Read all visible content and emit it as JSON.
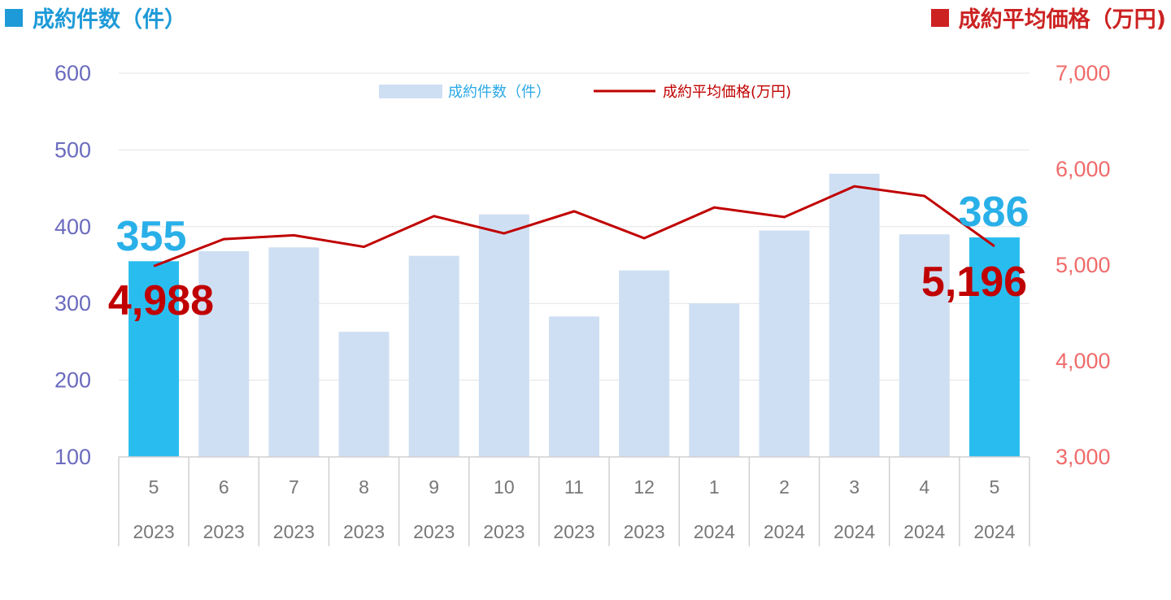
{
  "header": {
    "left_title": "成約件数（件）",
    "right_title": "成約平均価格（万円)"
  },
  "colors": {
    "bar": "#cfdff3",
    "bar_highlight": "#29bdef",
    "line": "#c00000",
    "left_axis": "#6b6bbf",
    "right_axis": "#f06b6b",
    "count_label": "#29b0e8",
    "price_label": "#c00000"
  },
  "chart_data": {
    "type": "bar",
    "categories": [
      "5\n2023",
      "6\n2023",
      "7\n2023",
      "8\n2023",
      "9\n2023",
      "10\n2023",
      "11\n2023",
      "12\n2023",
      "1\n2024",
      "2\n2024",
      "3\n2024",
      "4\n2024",
      "5\n2024"
    ],
    "months": [
      "5",
      "6",
      "7",
      "8",
      "9",
      "10",
      "11",
      "12",
      "1",
      "2",
      "3",
      "4",
      "5"
    ],
    "years": [
      "2023",
      "2023",
      "2023",
      "2023",
      "2023",
      "2023",
      "2023",
      "2023",
      "2024",
      "2024",
      "2024",
      "2024",
      "2024"
    ],
    "series": [
      {
        "name": "成約件数（件）",
        "type": "bar",
        "axis": "left",
        "values": [
          355,
          368,
          373,
          263,
          362,
          416,
          283,
          343,
          300,
          395,
          469,
          390,
          386
        ],
        "highlight": [
          true,
          false,
          false,
          false,
          false,
          false,
          false,
          false,
          false,
          false,
          false,
          false,
          true
        ]
      },
      {
        "name": "成約平均価格(万円)",
        "type": "line",
        "axis": "right",
        "values": [
          4988,
          5270,
          5310,
          5190,
          5510,
          5330,
          5560,
          5280,
          5600,
          5500,
          5820,
          5720,
          5196
        ]
      }
    ],
    "ylim_left": [
      100,
      600
    ],
    "yticks_left": [
      "100",
      "200",
      "300",
      "400",
      "500",
      "600"
    ],
    "ylim_right": [
      3000,
      7000
    ],
    "yticks_right": [
      "3,000",
      "4,000",
      "5,000",
      "6,000",
      "7,000"
    ],
    "grid": true,
    "legend_position": "top-center",
    "annotations": {
      "first_count": "355",
      "first_price": "4,988",
      "last_count": "386",
      "last_price": "5,196"
    }
  }
}
